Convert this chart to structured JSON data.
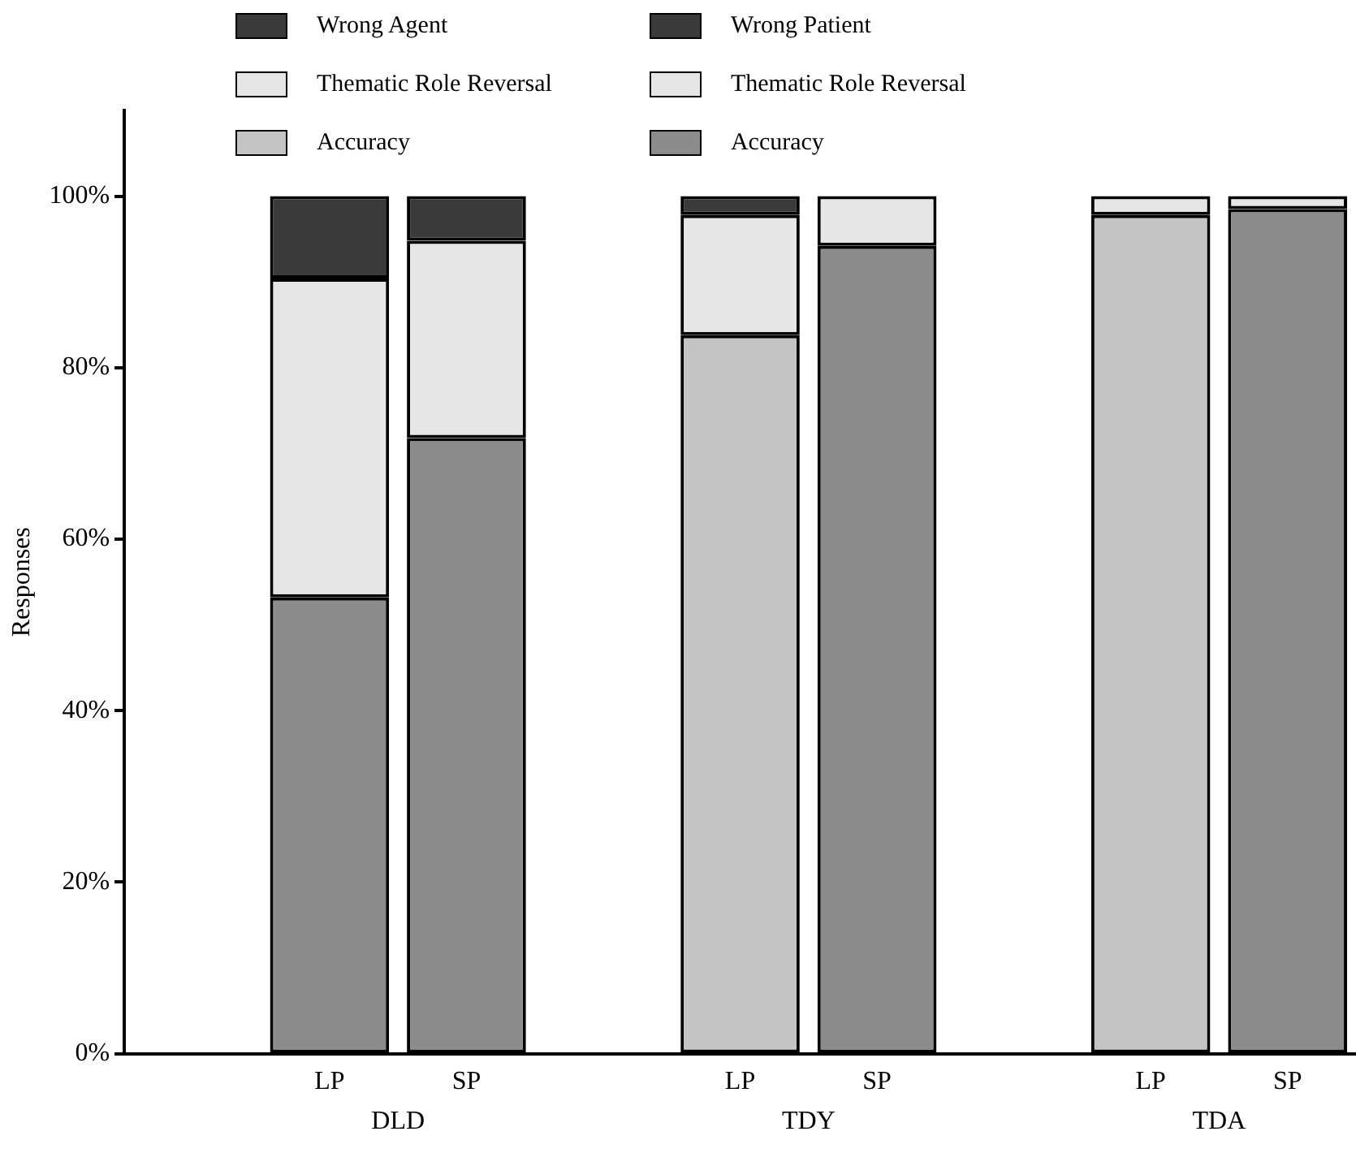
{
  "chart_data": {
    "type": "bar",
    "stacked": true,
    "ylabel": "Responses",
    "legend": "top",
    "grid": false,
    "categories": [
      null,
      "LP",
      "SP",
      null,
      "LP",
      "SP",
      null,
      "LP",
      "SP"
    ],
    "annotations": [
      "DLD",
      "TDY",
      "TDA"
    ],
    "ylim": [
      0,
      110
    ],
    "yticks": [
      {
        "value": 0,
        "label": "0%"
      },
      {
        "value": 20,
        "label": "20%"
      },
      {
        "value": 40,
        "label": "40%"
      },
      {
        "value": 60,
        "label": "60%"
      },
      {
        "value": 80,
        "label": "80%"
      },
      {
        "value": 100,
        "label": "100%"
      }
    ],
    "series": [
      {
        "name": "Accuracy",
        "color": "#c4c4c4",
        "colors": [
          null,
          "#8c8c8c",
          null,
          null,
          "#c4c4c4",
          null,
          null,
          "#c4c4c4",
          null
        ],
        "values": [
          null,
          53.2,
          null,
          null,
          83.8,
          null,
          null,
          97.8,
          null
        ]
      },
      {
        "name": "Thematic Role Reversal",
        "color": "#e6e6e6",
        "values": [
          null,
          37.2,
          null,
          null,
          14.0,
          null,
          null,
          2.2,
          null
        ]
      },
      {
        "name": "Wrong Agent",
        "color": "#3a3a3a",
        "values": [
          null,
          9.6,
          null,
          null,
          2.2,
          null,
          null,
          null,
          null
        ]
      },
      {
        "name": "Accuracy",
        "color": "#8c8c8c",
        "values": [
          null,
          null,
          71.8,
          null,
          null,
          94.2,
          null,
          null,
          98.5
        ]
      },
      {
        "name": "Thematic Role Reversal",
        "color": "#e6e6e6",
        "values": [
          null,
          null,
          23.0,
          null,
          null,
          5.8,
          null,
          null,
          1.5
        ]
      },
      {
        "name": "Wrong Patient",
        "color": "#3a3a3a",
        "values": [
          null,
          null,
          5.2,
          null,
          null,
          null,
          null,
          null,
          null
        ]
      }
    ]
  }
}
